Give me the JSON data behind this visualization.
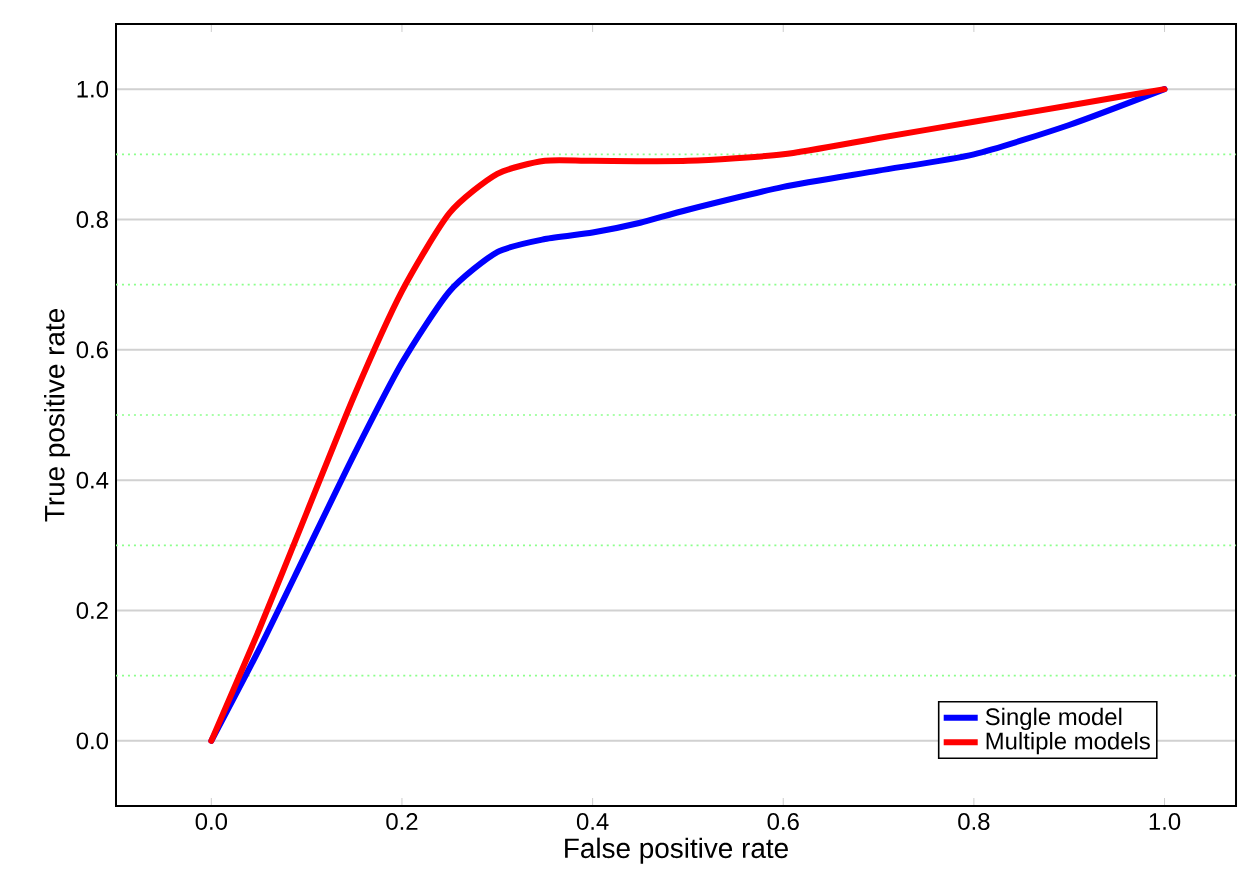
{
  "chart_data": {
    "type": "line",
    "xlabel": "False positive rate",
    "ylabel": "True positive rate",
    "xlim": [
      -0.1,
      1.075
    ],
    "ylim": [
      -0.1,
      1.1
    ],
    "xticks": [
      {
        "value": 0,
        "label": "0.0"
      },
      {
        "value": 0.2,
        "label": "0.2"
      },
      {
        "value": 0.4,
        "label": "0.4"
      },
      {
        "value": 0.6,
        "label": "0.6"
      },
      {
        "value": 0.8,
        "label": "0.8"
      },
      {
        "value": 1,
        "label": "1.0"
      }
    ],
    "yticks": [
      {
        "value": 0,
        "label": "0.0"
      },
      {
        "value": 0.1,
        "label": null
      },
      {
        "value": 0.2,
        "label": "0.2"
      },
      {
        "value": 0.3,
        "label": null
      },
      {
        "value": 0.4,
        "label": "0.4"
      },
      {
        "value": 0.5,
        "label": null
      },
      {
        "value": 0.6,
        "label": "0.6"
      },
      {
        "value": 0.7,
        "label": null
      },
      {
        "value": 0.8,
        "label": "0.8"
      },
      {
        "value": 0.9,
        "label": null
      },
      {
        "value": 1,
        "label": "1.0"
      }
    ],
    "grid": "y",
    "legend": "bottom right",
    "marker": "none",
    "line_style": "solid",
    "series": [
      {
        "name": "Single model",
        "color": "#0000ff",
        "x": [
          0,
          0.05,
          0.1,
          0.15,
          0.2,
          0.25,
          0.3,
          0.35,
          0.4,
          0.45,
          0.5,
          0.6,
          0.7,
          0.8,
          0.9,
          1.0
        ],
        "values": [
          0,
          0.14,
          0.29,
          0.44,
          0.58,
          0.69,
          0.75,
          0.77,
          0.78,
          0.795,
          0.815,
          0.85,
          0.875,
          0.9,
          0.945,
          1.0
        ]
      },
      {
        "name": "Multiple models",
        "color": "#ff0000",
        "x": [
          0,
          0.05,
          0.1,
          0.15,
          0.2,
          0.25,
          0.3,
          0.35,
          0.4,
          0.5,
          0.6,
          0.7,
          0.8,
          0.9,
          1.0
        ],
        "values": [
          0,
          0.17,
          0.35,
          0.53,
          0.69,
          0.81,
          0.87,
          0.89,
          0.89,
          0.89,
          0.9,
          0.925,
          0.95,
          0.975,
          1.0
        ]
      }
    ]
  }
}
